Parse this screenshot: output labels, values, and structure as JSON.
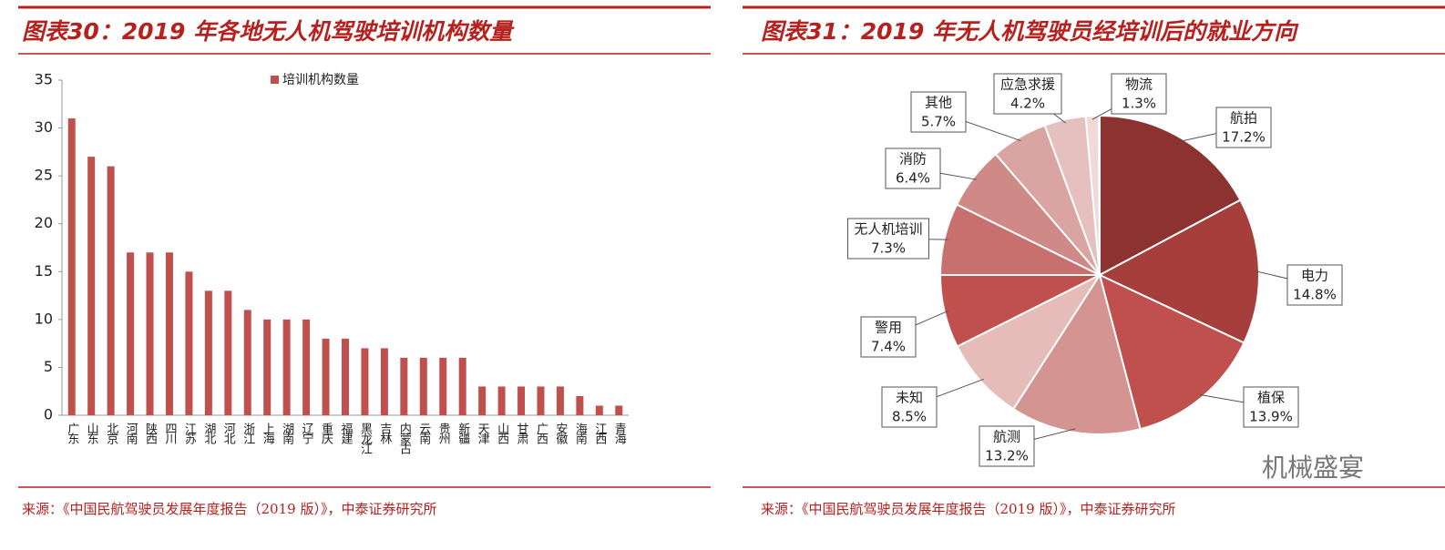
{
  "chart_data": [
    {
      "type": "bar",
      "title": "图表30：2019 年各地无人机驾驶培训机构数量",
      "categories": [
        "广东",
        "山东",
        "北京",
        "河南",
        "陕西",
        "四川",
        "江苏",
        "湖北",
        "河北",
        "浙江",
        "上海",
        "湖南",
        "辽宁",
        "重庆",
        "福建",
        "黑龙江",
        "吉林",
        "内蒙古",
        "云南",
        "贵州",
        "新疆",
        "天津",
        "山西",
        "甘肃",
        "广西",
        "安徽",
        "海南",
        "江西",
        "青海"
      ],
      "series": [
        {
          "name": "培训机构数量",
          "color": "#c0504d",
          "values": [
            31,
            27,
            26,
            17,
            17,
            17,
            15,
            13,
            13,
            11,
            10,
            10,
            10,
            8,
            8,
            7,
            7,
            6,
            6,
            6,
            6,
            3,
            3,
            3,
            3,
            3,
            2,
            1,
            1
          ]
        }
      ],
      "ylim": [
        0,
        35
      ],
      "yticks": [
        0,
        5,
        10,
        15,
        20,
        25,
        30,
        35
      ],
      "legend": "top",
      "source": "来源：《中国民航驾驶员发展年度报告（2019 版）》，中泰证券研究所"
    },
    {
      "type": "pie",
      "title": "图表31：2019 年无人机驾驶员经培训后的就业方向",
      "labels": [
        "航拍",
        "电力",
        "植保",
        "航测",
        "未知",
        "警用",
        "无人机培训",
        "消防",
        "其他",
        "应急求援",
        "物流"
      ],
      "values": [
        17.2,
        14.8,
        13.9,
        13.2,
        8.5,
        7.4,
        7.3,
        6.4,
        5.7,
        4.2,
        1.3
      ],
      "value_labels": [
        "17.2%",
        "14.8%",
        "13.9%",
        "13.2%",
        "8.5%",
        "7.4%",
        "7.3%",
        "6.4%",
        "5.7%",
        "4.2%",
        "1.3%"
      ],
      "colors": [
        "#8c3331",
        "#a63e3b",
        "#c0504d",
        "#d49492",
        "#e6bcbb",
        "#c0504d",
        "#c7706d",
        "#cf8987",
        "#d9a4a2",
        "#e5c0bf",
        "#f0d9d8"
      ],
      "source": "来源：《中国民航驾驶员发展年度报告（2019 版）》，中泰证券研究所"
    }
  ],
  "watermark": "机械盛宴"
}
